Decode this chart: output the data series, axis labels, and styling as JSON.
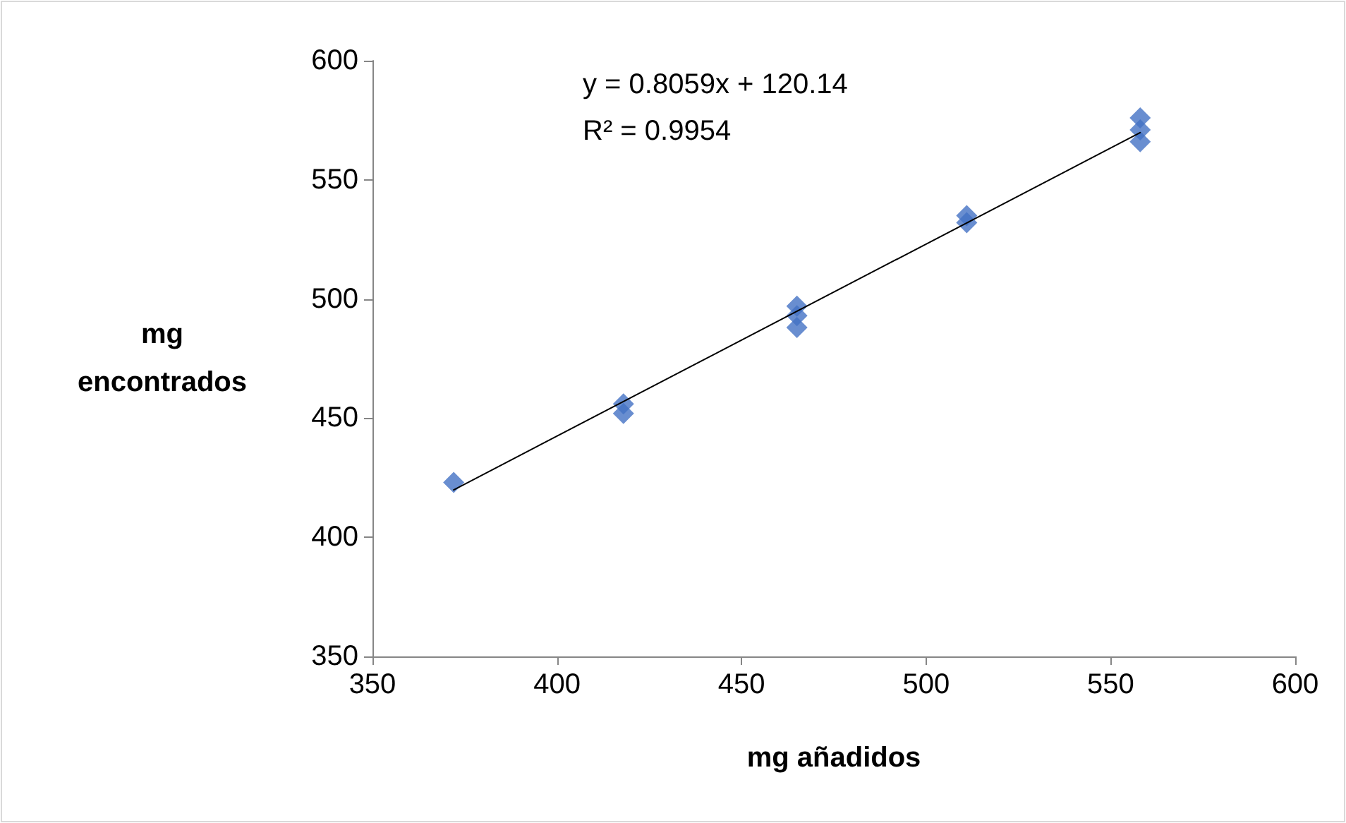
{
  "chart_data": {
    "type": "scatter",
    "xlabel": "mg añadidos",
    "ylabel": "mg\nencontrados",
    "x": [
      372,
      418,
      418,
      465,
      465,
      465,
      511,
      511,
      558,
      558,
      558
    ],
    "series": [
      {
        "color": "#4472c4",
        "values": [
          423,
          456,
          452,
          497,
          493,
          488,
          535,
          532,
          576,
          571,
          566
        ],
        "marker": "diamond"
      },
      {
        "type": "line",
        "color": "#000000",
        "x": [
          372,
          558
        ],
        "values": [
          419.9,
          569.8
        ],
        "marker": "none",
        "line_style": "solid"
      }
    ],
    "annotations": [
      "y = 0.8059x + 120.14",
      "R² = 0.9954"
    ],
    "xlim": [
      350,
      600
    ],
    "xticks": [
      350,
      400,
      450,
      500,
      550,
      600
    ],
    "ylim": [
      350,
      600
    ],
    "yticks": [
      350,
      400,
      450,
      500,
      550,
      600
    ],
    "grid": false
  }
}
